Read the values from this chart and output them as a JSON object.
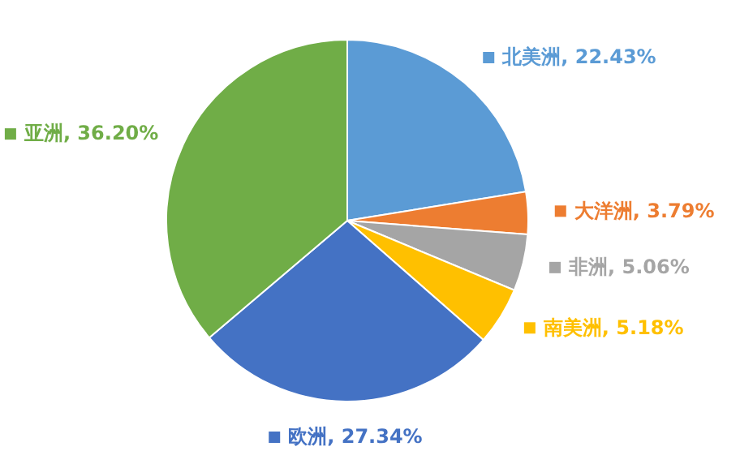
{
  "chart_data": {
    "type": "pie",
    "categories": [
      "北美洲",
      "大洋洲",
      "非洲",
      "南美洲",
      "欧洲",
      "亚洲"
    ],
    "values": [
      22.43,
      3.79,
      5.06,
      5.18,
      27.34,
      36.2
    ],
    "value_labels": [
      "22.43%",
      "3.79%",
      "5.06%",
      "5.18%",
      "27.34%",
      "36.20%"
    ],
    "colors": [
      "#5b9bd5",
      "#ed7d31",
      "#a5a5a5",
      "#ffc000",
      "#4472c4",
      "#70ad47"
    ],
    "legend": "right"
  }
}
